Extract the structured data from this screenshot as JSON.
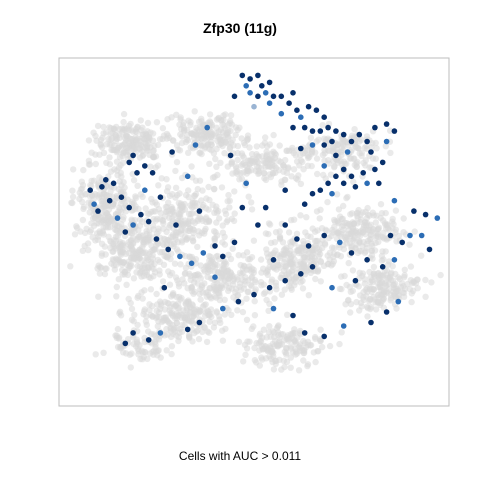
{
  "chart_data": {
    "type": "scatter",
    "title": "Zfp30 (11g)",
    "xlabel": "Cells with AUC > 0.011",
    "ylabel": "",
    "grid": false,
    "legend": "none",
    "colors": {
      "background_cells": "#d9d9d9",
      "highlight_high": "#08306b",
      "highlight_mid": "#2c6db5",
      "highlight_low": "#9ab4d3",
      "frame": "#bdbdbd"
    },
    "series": [
      {
        "role": "background",
        "clusters": [
          {
            "center": [
              0.18,
              0.24
            ],
            "spread": [
              0.07,
              0.05
            ],
            "count": 170
          },
          {
            "center": [
              0.12,
              0.42
            ],
            "spread": [
              0.07,
              0.09
            ],
            "count": 230
          },
          {
            "center": [
              0.2,
              0.55
            ],
            "spread": [
              0.1,
              0.08
            ],
            "count": 260
          },
          {
            "center": [
              0.37,
              0.22
            ],
            "spread": [
              0.08,
              0.05
            ],
            "count": 180
          },
          {
            "center": [
              0.52,
              0.3
            ],
            "spread": [
              0.1,
              0.05
            ],
            "count": 150
          },
          {
            "center": [
              0.33,
              0.45
            ],
            "spread": [
              0.1,
              0.08
            ],
            "count": 220
          },
          {
            "center": [
              0.42,
              0.63
            ],
            "spread": [
              0.12,
              0.07
            ],
            "count": 240
          },
          {
            "center": [
              0.3,
              0.74
            ],
            "spread": [
              0.1,
              0.06
            ],
            "count": 200
          },
          {
            "center": [
              0.62,
              0.58
            ],
            "spread": [
              0.08,
              0.08
            ],
            "count": 210
          },
          {
            "center": [
              0.77,
              0.5
            ],
            "spread": [
              0.09,
              0.06
            ],
            "count": 200
          },
          {
            "center": [
              0.82,
              0.66
            ],
            "spread": [
              0.08,
              0.06
            ],
            "count": 180
          },
          {
            "center": [
              0.72,
              0.27
            ],
            "spread": [
              0.09,
              0.06
            ],
            "count": 150
          },
          {
            "center": [
              0.58,
              0.83
            ],
            "spread": [
              0.09,
              0.05
            ],
            "count": 150
          },
          {
            "center": [
              0.2,
              0.83
            ],
            "spread": [
              0.06,
              0.04
            ],
            "count": 70
          }
        ]
      },
      {
        "role": "cells_above_threshold",
        "points": [
          [
            0.47,
            0.05,
            3
          ],
          [
            0.49,
            0.06,
            3
          ],
          [
            0.51,
            0.05,
            3
          ],
          [
            0.52,
            0.08,
            3
          ],
          [
            0.53,
            0.1,
            2
          ],
          [
            0.51,
            0.11,
            3
          ],
          [
            0.49,
            0.1,
            2
          ],
          [
            0.48,
            0.08,
            2
          ],
          [
            0.54,
            0.07,
            3
          ],
          [
            0.55,
            0.11,
            3
          ],
          [
            0.57,
            0.11,
            3
          ],
          [
            0.54,
            0.13,
            2
          ],
          [
            0.5,
            0.14,
            1
          ],
          [
            0.59,
            0.13,
            3
          ],
          [
            0.61,
            0.15,
            3
          ],
          [
            0.64,
            0.14,
            3
          ],
          [
            0.66,
            0.15,
            3
          ],
          [
            0.68,
            0.17,
            3
          ],
          [
            0.62,
            0.17,
            2
          ],
          [
            0.6,
            0.2,
            3
          ],
          [
            0.63,
            0.2,
            3
          ],
          [
            0.65,
            0.21,
            3
          ],
          [
            0.67,
            0.21,
            3
          ],
          [
            0.69,
            0.2,
            3
          ],
          [
            0.71,
            0.21,
            3
          ],
          [
            0.73,
            0.22,
            3
          ],
          [
            0.7,
            0.24,
            3
          ],
          [
            0.75,
            0.24,
            3
          ],
          [
            0.77,
            0.22,
            3
          ],
          [
            0.79,
            0.24,
            3
          ],
          [
            0.74,
            0.27,
            2
          ],
          [
            0.71,
            0.28,
            3
          ],
          [
            0.68,
            0.25,
            3
          ],
          [
            0.65,
            0.25,
            2
          ],
          [
            0.62,
            0.26,
            3
          ],
          [
            0.8,
            0.27,
            3
          ],
          [
            0.81,
            0.2,
            3
          ],
          [
            0.84,
            0.19,
            3
          ],
          [
            0.86,
            0.21,
            3
          ],
          [
            0.84,
            0.24,
            2
          ],
          [
            0.83,
            0.3,
            3
          ],
          [
            0.81,
            0.32,
            3
          ],
          [
            0.78,
            0.33,
            3
          ],
          [
            0.75,
            0.34,
            3
          ],
          [
            0.73,
            0.32,
            3
          ],
          [
            0.71,
            0.34,
            3
          ],
          [
            0.69,
            0.36,
            3
          ],
          [
            0.67,
            0.38,
            3
          ],
          [
            0.65,
            0.39,
            3
          ],
          [
            0.7,
            0.39,
            2
          ],
          [
            0.76,
            0.37,
            3
          ],
          [
            0.79,
            0.36,
            2
          ],
          [
            0.73,
            0.36,
            3
          ],
          [
            0.82,
            0.36,
            3
          ],
          [
            0.63,
            0.42,
            3
          ],
          [
            0.86,
            0.41,
            2
          ],
          [
            0.94,
            0.45,
            3
          ],
          [
            0.91,
            0.44,
            3
          ],
          [
            0.97,
            0.46,
            2
          ],
          [
            0.38,
            0.2,
            2
          ],
          [
            0.29,
            0.27,
            3
          ],
          [
            0.35,
            0.25,
            2
          ],
          [
            0.44,
            0.28,
            3
          ],
          [
            0.18,
            0.3,
            3
          ],
          [
            0.19,
            0.28,
            3
          ],
          [
            0.22,
            0.31,
            3
          ],
          [
            0.24,
            0.33,
            3
          ],
          [
            0.2,
            0.33,
            3
          ],
          [
            0.14,
            0.36,
            3
          ],
          [
            0.11,
            0.37,
            3
          ],
          [
            0.12,
            0.35,
            3
          ],
          [
            0.08,
            0.38,
            3
          ],
          [
            0.16,
            0.4,
            3
          ],
          [
            0.18,
            0.43,
            3
          ],
          [
            0.21,
            0.45,
            3
          ],
          [
            0.23,
            0.47,
            3
          ],
          [
            0.19,
            0.48,
            2
          ],
          [
            0.17,
            0.5,
            3
          ],
          [
            0.15,
            0.46,
            2
          ],
          [
            0.1,
            0.44,
            3
          ],
          [
            0.09,
            0.42,
            2
          ],
          [
            0.25,
            0.52,
            3
          ],
          [
            0.28,
            0.55,
            3
          ],
          [
            0.31,
            0.57,
            2
          ],
          [
            0.34,
            0.59,
            2
          ],
          [
            0.37,
            0.56,
            2
          ],
          [
            0.4,
            0.54,
            3
          ],
          [
            0.45,
            0.53,
            3
          ],
          [
            0.51,
            0.48,
            3
          ],
          [
            0.47,
            0.43,
            3
          ],
          [
            0.53,
            0.43,
            3
          ],
          [
            0.58,
            0.48,
            3
          ],
          [
            0.61,
            0.52,
            3
          ],
          [
            0.64,
            0.54,
            3
          ],
          [
            0.68,
            0.51,
            3
          ],
          [
            0.72,
            0.53,
            2
          ],
          [
            0.75,
            0.56,
            3
          ],
          [
            0.79,
            0.58,
            3
          ],
          [
            0.83,
            0.6,
            3
          ],
          [
            0.86,
            0.58,
            2
          ],
          [
            0.88,
            0.53,
            3
          ],
          [
            0.9,
            0.51,
            2
          ],
          [
            0.93,
            0.51,
            2
          ],
          [
            0.95,
            0.55,
            3
          ],
          [
            0.85,
            0.51,
            3
          ],
          [
            0.65,
            0.6,
            3
          ],
          [
            0.62,
            0.62,
            3
          ],
          [
            0.58,
            0.64,
            3
          ],
          [
            0.54,
            0.66,
            3
          ],
          [
            0.5,
            0.68,
            3
          ],
          [
            0.46,
            0.7,
            3
          ],
          [
            0.42,
            0.72,
            2
          ],
          [
            0.36,
            0.76,
            3
          ],
          [
            0.33,
            0.78,
            3
          ],
          [
            0.26,
            0.79,
            2
          ],
          [
            0.23,
            0.81,
            3
          ],
          [
            0.19,
            0.79,
            3
          ],
          [
            0.17,
            0.82,
            3
          ],
          [
            0.55,
            0.72,
            2
          ],
          [
            0.6,
            0.74,
            3
          ],
          [
            0.63,
            0.79,
            3
          ],
          [
            0.68,
            0.8,
            3
          ],
          [
            0.73,
            0.77,
            2
          ],
          [
            0.8,
            0.76,
            3
          ],
          [
            0.84,
            0.73,
            3
          ],
          [
            0.87,
            0.7,
            2
          ],
          [
            0.42,
            0.57,
            3
          ],
          [
            0.36,
            0.44,
            3
          ],
          [
            0.3,
            0.48,
            3
          ],
          [
            0.26,
            0.4,
            3
          ],
          [
            0.33,
            0.34,
            2
          ],
          [
            0.55,
            0.58,
            3
          ],
          [
            0.58,
            0.38,
            3
          ],
          [
            0.48,
            0.36,
            2
          ],
          [
            0.4,
            0.63,
            2
          ],
          [
            0.27,
            0.66,
            3
          ],
          [
            0.7,
            0.66,
            2
          ],
          [
            0.76,
            0.64,
            3
          ],
          [
            0.22,
            0.38,
            2
          ],
          [
            0.13,
            0.41,
            3
          ],
          [
            0.57,
            0.16,
            2
          ],
          [
            0.6,
            0.1,
            3
          ],
          [
            0.45,
            0.11,
            3
          ],
          [
            0.68,
            0.31,
            2
          ]
        ]
      }
    ]
  }
}
